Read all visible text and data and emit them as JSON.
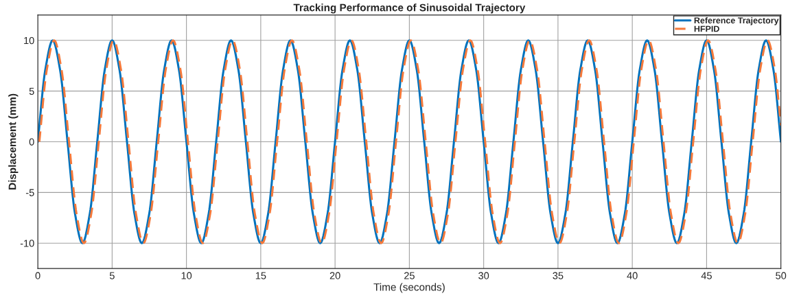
{
  "chart_data": {
    "type": "line",
    "title": "Tracking Performance of Sinusoidal Trajectory",
    "xlabel": "Time (seconds)",
    "ylabel": "Displacement (mm)",
    "xlim": [
      0,
      50
    ],
    "ylim": [
      -12.5,
      12.5
    ],
    "xticks": [
      0,
      5,
      10,
      15,
      20,
      25,
      30,
      35,
      40,
      45,
      50
    ],
    "yticks": [
      -10,
      -5,
      0,
      5,
      10
    ],
    "grid": true,
    "legend": "top right",
    "series": [
      {
        "name": "Reference Trajectory",
        "color": "#0072bd",
        "line_style": "solid",
        "x": [
          0,
          0.5,
          1,
          1.5,
          2,
          2.5,
          3,
          3.5,
          4,
          4.5,
          5,
          5.5,
          6,
          6.5,
          7,
          7.5,
          8,
          8.5,
          9,
          9.5,
          10,
          10.5,
          11,
          11.5,
          12,
          12.5,
          13,
          13.5,
          14,
          14.5,
          15,
          15.5,
          16,
          16.5,
          17,
          17.5,
          18,
          18.5,
          19,
          19.5,
          20,
          20.5,
          21,
          21.5,
          22,
          22.5,
          23,
          23.5,
          24,
          24.5,
          25,
          25.5,
          26,
          26.5,
          27,
          27.5,
          28,
          28.5,
          29,
          29.5,
          30,
          30.5,
          31,
          31.5,
          32,
          32.5,
          33,
          33.5,
          34,
          34.5,
          35,
          35.5,
          36,
          36.5,
          37,
          37.5,
          38,
          38.5,
          39,
          39.5,
          40,
          40.5,
          41,
          41.5,
          42,
          42.5,
          43,
          43.5,
          44,
          44.5,
          45,
          45.5,
          46,
          46.5,
          47,
          47.5,
          48,
          48.5,
          49,
          49.5,
          50
        ],
        "values": [
          0,
          7.07,
          10,
          7.07,
          0,
          -7.07,
          -10,
          -7.07,
          0,
          7.07,
          10,
          7.07,
          0,
          -7.07,
          -10,
          -7.07,
          0,
          7.07,
          10,
          7.07,
          0,
          -7.07,
          -10,
          -7.07,
          0,
          7.07,
          10,
          7.07,
          0,
          -7.07,
          -10,
          -7.07,
          0,
          7.07,
          10,
          7.07,
          0,
          -7.07,
          -10,
          -7.07,
          0,
          7.07,
          10,
          7.07,
          0,
          -7.07,
          -10,
          -7.07,
          0,
          7.07,
          10,
          7.07,
          0,
          -7.07,
          -10,
          -7.07,
          0,
          7.07,
          10,
          7.07,
          0,
          -7.07,
          -10,
          -7.07,
          0,
          7.07,
          10,
          7.07,
          0,
          -7.07,
          -10,
          -7.07,
          0,
          7.07,
          10,
          7.07,
          0,
          -7.07,
          -10,
          -7.07,
          0,
          7.07,
          10,
          7.07,
          0,
          -7.07,
          -10,
          -7.07,
          0,
          7.07,
          10,
          7.07,
          0,
          -7.07,
          -10,
          -7.07,
          0,
          7.07,
          10,
          7.07,
          0
        ]
      },
      {
        "name": "HFPID",
        "color": "#f4793b",
        "line_style": "dashed",
        "x": [
          0.1,
          0.6,
          1.1,
          1.6,
          2.1,
          2.6,
          3.1,
          3.6,
          4.1,
          4.6,
          5.1,
          5.6,
          6.1,
          6.6,
          7.1,
          7.6,
          8.1,
          8.6,
          9.1,
          9.6,
          10.1,
          10.6,
          11.1,
          11.6,
          12.1,
          12.6,
          13.1,
          13.6,
          14.1,
          14.6,
          15.1,
          15.6,
          16.1,
          16.6,
          17.1,
          17.6,
          18.1,
          18.6,
          19.1,
          19.6,
          20.1,
          20.6,
          21.1,
          21.6,
          22.1,
          22.6,
          23.1,
          23.6,
          24.1,
          24.6,
          25.1,
          25.6,
          26.1,
          26.6,
          27.1,
          27.6,
          28.1,
          28.6,
          29.1,
          29.6,
          30.1,
          30.6,
          31.1,
          31.6,
          32.1,
          32.6,
          33.1,
          33.6,
          34.1,
          34.6,
          35.1,
          35.6,
          36.1,
          36.6,
          37.1,
          37.6,
          38.1,
          38.6,
          39.1,
          39.6,
          40.1,
          40.6,
          41.1,
          41.6,
          42.1,
          42.6,
          43.1,
          43.6,
          44.1,
          44.6,
          45.1,
          45.6,
          46.1,
          46.6,
          47.1,
          47.6,
          48.1,
          48.6,
          49.1,
          49.6,
          50
        ],
        "values": [
          0,
          7.07,
          10,
          7.07,
          0,
          -7.07,
          -10,
          -7.07,
          0,
          7.07,
          10,
          7.07,
          0,
          -7.07,
          -10,
          -7.07,
          0,
          7.07,
          10,
          7.07,
          0,
          -7.07,
          -10,
          -7.07,
          0,
          7.07,
          10,
          7.07,
          0,
          -7.07,
          -10,
          -7.07,
          0,
          7.07,
          10,
          7.07,
          0,
          -7.07,
          -10,
          -7.07,
          0,
          7.07,
          10,
          7.07,
          0,
          -7.07,
          -10,
          -7.07,
          0,
          7.07,
          10,
          7.07,
          0,
          -7.07,
          -10,
          -7.07,
          0,
          7.07,
          10,
          7.07,
          0,
          -7.07,
          -10,
          -7.07,
          0,
          7.07,
          10,
          7.07,
          0,
          -7.07,
          -10,
          -7.07,
          0,
          7.07,
          10,
          7.07,
          0,
          -7.07,
          -10,
          -7.07,
          0,
          7.07,
          10,
          7.07,
          0,
          -7.07,
          -10,
          -7.07,
          0,
          7.07,
          10,
          7.07,
          0,
          -7.07,
          -10,
          -7.07,
          0,
          7.07,
          10,
          7.07,
          1.6
        ]
      }
    ]
  }
}
